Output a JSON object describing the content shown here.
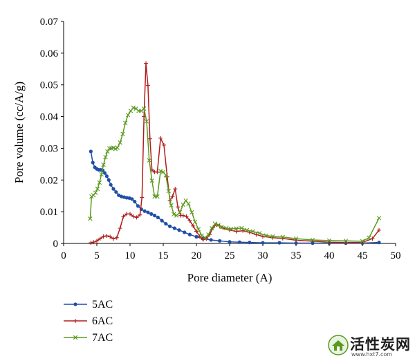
{
  "chart_data": {
    "type": "line",
    "xlabel": "Pore diameter (A)",
    "ylabel": "Pore volume (cc/A/g)",
    "xlim": [
      0,
      50
    ],
    "ylim": [
      0,
      0.07
    ],
    "x_ticks": [
      "0",
      "5",
      "10",
      "15",
      "20",
      "25",
      "30",
      "35",
      "40",
      "45",
      "50"
    ],
    "y_ticks": [
      "0",
      "0.01",
      "0.02",
      "0.03",
      "0.04",
      "0.05",
      "0.06",
      "0.07"
    ],
    "legend_position": "bottom-left",
    "series": [
      {
        "name": "5AC",
        "color": "#1f4fa8",
        "marker": "circle",
        "points": [
          [
            4.1,
            0.029
          ],
          [
            4.4,
            0.0255
          ],
          [
            4.7,
            0.024
          ],
          [
            5.0,
            0.0235
          ],
          [
            5.3,
            0.0232
          ],
          [
            5.6,
            0.0232
          ],
          [
            5.9,
            0.023
          ],
          [
            6.2,
            0.0222
          ],
          [
            6.5,
            0.0212
          ],
          [
            6.8,
            0.02
          ],
          [
            7.1,
            0.0185
          ],
          [
            7.5,
            0.0172
          ],
          [
            7.9,
            0.0162
          ],
          [
            8.3,
            0.0152
          ],
          [
            8.7,
            0.0148
          ],
          [
            9.1,
            0.0146
          ],
          [
            9.5,
            0.0144
          ],
          [
            9.9,
            0.0143
          ],
          [
            10.3,
            0.014
          ],
          [
            10.7,
            0.0132
          ],
          [
            11.2,
            0.0118
          ],
          [
            11.7,
            0.0108
          ],
          [
            12.2,
            0.0102
          ],
          [
            12.7,
            0.0098
          ],
          [
            13.2,
            0.0093
          ],
          [
            13.7,
            0.0088
          ],
          [
            14.2,
            0.0082
          ],
          [
            14.8,
            0.0072
          ],
          [
            15.4,
            0.0062
          ],
          [
            16.0,
            0.0054
          ],
          [
            16.7,
            0.0048
          ],
          [
            17.4,
            0.0042
          ],
          [
            18.2,
            0.0035
          ],
          [
            19.0,
            0.0028
          ],
          [
            20.0,
            0.0021
          ],
          [
            21.0,
            0.0015
          ],
          [
            22.2,
            0.0011
          ],
          [
            23.5,
            0.0008
          ],
          [
            25.0,
            0.0005
          ],
          [
            26.5,
            0.0004
          ],
          [
            28.0,
            0.0003
          ],
          [
            30.0,
            0.0002
          ],
          [
            32.5,
            0.0002
          ],
          [
            35.0,
            0.0001
          ],
          [
            37.5,
            0.0001
          ],
          [
            40.0,
            0.0001
          ],
          [
            42.5,
            0.0001
          ],
          [
            45.0,
            0.0001
          ],
          [
            47.5,
            0.0003
          ]
        ]
      },
      {
        "name": "6AC",
        "color": "#b01c1c",
        "marker": "plus",
        "points": [
          [
            4.1,
            0.0002
          ],
          [
            4.5,
            0.0004
          ],
          [
            5.0,
            0.0008
          ],
          [
            5.5,
            0.0015
          ],
          [
            6.0,
            0.0022
          ],
          [
            6.5,
            0.0024
          ],
          [
            7.0,
            0.0021
          ],
          [
            7.5,
            0.0015
          ],
          [
            8.0,
            0.0018
          ],
          [
            8.5,
            0.0048
          ],
          [
            9.0,
            0.0085
          ],
          [
            9.5,
            0.0093
          ],
          [
            10.0,
            0.0093
          ],
          [
            10.5,
            0.0085
          ],
          [
            11.0,
            0.0082
          ],
          [
            11.5,
            0.009
          ],
          [
            11.8,
            0.0145
          ],
          [
            12.1,
            0.04
          ],
          [
            12.4,
            0.0568
          ],
          [
            12.7,
            0.0498
          ],
          [
            13.0,
            0.033
          ],
          [
            13.3,
            0.0232
          ],
          [
            13.7,
            0.0225
          ],
          [
            14.1,
            0.0225
          ],
          [
            14.6,
            0.0332
          ],
          [
            15.1,
            0.031
          ],
          [
            15.6,
            0.021
          ],
          [
            16.0,
            0.0135
          ],
          [
            16.4,
            0.0148
          ],
          [
            16.8,
            0.0172
          ],
          [
            17.2,
            0.0115
          ],
          [
            17.6,
            0.0088
          ],
          [
            18.0,
            0.0088
          ],
          [
            18.5,
            0.0085
          ],
          [
            19.0,
            0.0072
          ],
          [
            19.5,
            0.0055
          ],
          [
            20.0,
            0.0038
          ],
          [
            20.5,
            0.0022
          ],
          [
            21.0,
            0.0012
          ],
          [
            21.5,
            0.0015
          ],
          [
            22.0,
            0.0028
          ],
          [
            22.5,
            0.005
          ],
          [
            23.0,
            0.006
          ],
          [
            23.5,
            0.0055
          ],
          [
            24.0,
            0.0048
          ],
          [
            25.0,
            0.0042
          ],
          [
            26.0,
            0.0038
          ],
          [
            27.0,
            0.004
          ],
          [
            28.0,
            0.0035
          ],
          [
            29.0,
            0.0028
          ],
          [
            30.0,
            0.0022
          ],
          [
            31.5,
            0.0018
          ],
          [
            33.0,
            0.0016
          ],
          [
            35.0,
            0.001
          ],
          [
            37.5,
            0.0007
          ],
          [
            40.0,
            0.0004
          ],
          [
            42.5,
            0.0003
          ],
          [
            45.0,
            0.0003
          ],
          [
            46.5,
            0.0015
          ],
          [
            47.5,
            0.0042
          ]
        ]
      },
      {
        "name": "7AC",
        "color": "#5a9a1e",
        "marker": "x",
        "points": [
          [
            4.0,
            0.0078
          ],
          [
            4.2,
            0.0148
          ],
          [
            4.5,
            0.0152
          ],
          [
            4.8,
            0.016
          ],
          [
            5.1,
            0.0172
          ],
          [
            5.4,
            0.0192
          ],
          [
            5.7,
            0.0218
          ],
          [
            6.0,
            0.0248
          ],
          [
            6.3,
            0.0272
          ],
          [
            6.6,
            0.029
          ],
          [
            6.9,
            0.03
          ],
          [
            7.2,
            0.03
          ],
          [
            7.5,
            0.0302
          ],
          [
            7.8,
            0.0298
          ],
          [
            8.1,
            0.0302
          ],
          [
            8.5,
            0.0318
          ],
          [
            8.9,
            0.0345
          ],
          [
            9.3,
            0.038
          ],
          [
            9.7,
            0.0405
          ],
          [
            10.1,
            0.0418
          ],
          [
            10.5,
            0.0428
          ],
          [
            10.9,
            0.0425
          ],
          [
            11.3,
            0.0418
          ],
          [
            11.7,
            0.0418
          ],
          [
            12.1,
            0.0425
          ],
          [
            12.5,
            0.0385
          ],
          [
            12.9,
            0.0262
          ],
          [
            13.3,
            0.0198
          ],
          [
            13.7,
            0.0148
          ],
          [
            14.1,
            0.0148
          ],
          [
            14.6,
            0.0228
          ],
          [
            15.0,
            0.0225
          ],
          [
            15.4,
            0.0215
          ],
          [
            15.8,
            0.0165
          ],
          [
            16.2,
            0.012
          ],
          [
            16.6,
            0.0092
          ],
          [
            17.0,
            0.0088
          ],
          [
            17.5,
            0.0098
          ],
          [
            18.0,
            0.0122
          ],
          [
            18.4,
            0.0135
          ],
          [
            18.8,
            0.0125
          ],
          [
            19.3,
            0.0098
          ],
          [
            19.8,
            0.0068
          ],
          [
            20.3,
            0.0045
          ],
          [
            20.8,
            0.0025
          ],
          [
            21.3,
            0.0018
          ],
          [
            21.8,
            0.0028
          ],
          [
            22.3,
            0.0048
          ],
          [
            22.8,
            0.0062
          ],
          [
            23.3,
            0.0058
          ],
          [
            23.8,
            0.0052
          ],
          [
            24.5,
            0.0048
          ],
          [
            25.2,
            0.0046
          ],
          [
            26.0,
            0.0047
          ],
          [
            26.8,
            0.0048
          ],
          [
            27.6,
            0.0042
          ],
          [
            28.5,
            0.0038
          ],
          [
            29.5,
            0.0032
          ],
          [
            30.5,
            0.0025
          ],
          [
            31.5,
            0.0022
          ],
          [
            33.0,
            0.002
          ],
          [
            35.0,
            0.0015
          ],
          [
            37.5,
            0.0011
          ],
          [
            40.0,
            0.0009
          ],
          [
            42.5,
            0.0008
          ],
          [
            45.0,
            0.0007
          ],
          [
            46.0,
            0.0018
          ],
          [
            47.5,
            0.008
          ]
        ]
      }
    ]
  },
  "watermark": {
    "title": "活性炭网",
    "url": "www.hxt7.com"
  }
}
